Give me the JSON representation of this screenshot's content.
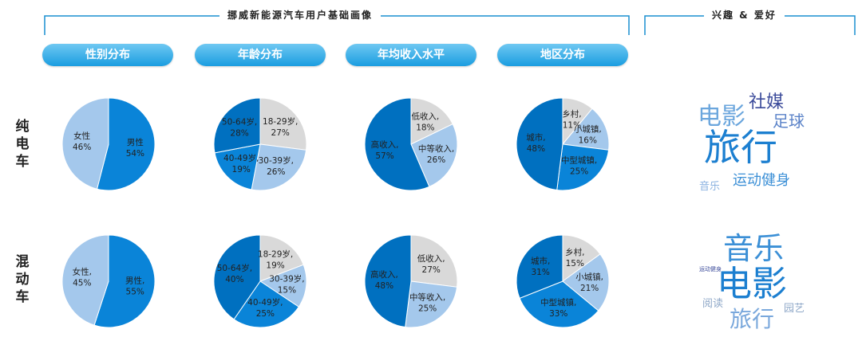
{
  "header": {
    "profile_title": "挪威新能源汽车用户基础画像",
    "interest_title": "兴趣 & 爱好"
  },
  "categories": [
    "性别分布",
    "年龄分布",
    "年均收入水平",
    "地区分布"
  ],
  "rows": [
    {
      "label": [
        "纯",
        "电",
        "车"
      ]
    },
    {
      "label": [
        "混",
        "动",
        "车"
      ]
    }
  ],
  "colors": {
    "dark_blue": "#0070c0",
    "medium_blue": "#0a84d8",
    "light_blue": "#a4c8ec",
    "gray": "#d9d9d9",
    "pill_accent": "#1a9de0"
  },
  "chart_data": [
    {
      "type": "pie",
      "row": "纯电车",
      "category": "性别分布",
      "slices": [
        {
          "name": "男性",
          "value_label": "54%",
          "value": 54,
          "color": "#0a84d8"
        },
        {
          "name": "女性",
          "value_label": "46%",
          "value": 46,
          "color": "#a4c8ec"
        }
      ]
    },
    {
      "type": "pie",
      "row": "纯电车",
      "category": "年龄分布",
      "slices": [
        {
          "name": "18-29岁,",
          "value_label": "27%",
          "value": 27,
          "color": "#d9d9d9"
        },
        {
          "name": "30-39岁,",
          "value_label": "26%",
          "value": 26,
          "color": "#a4c8ec"
        },
        {
          "name": "40-49岁,",
          "value_label": "19%",
          "value": 19,
          "color": "#0a84d8"
        },
        {
          "name": "50-64岁,",
          "value_label": "28%",
          "value": 28,
          "color": "#0070c0"
        }
      ]
    },
    {
      "type": "pie",
      "row": "纯电车",
      "category": "年均收入水平",
      "slices": [
        {
          "name": "低收入,",
          "value_label": "18%",
          "value": 18,
          "color": "#d9d9d9"
        },
        {
          "name": "中等收入,",
          "value_label": "26%",
          "value": 26,
          "color": "#a4c8ec"
        },
        {
          "name": "高收入,",
          "value_label": "57%",
          "value": 57,
          "color": "#0070c0"
        }
      ]
    },
    {
      "type": "pie",
      "row": "纯电车",
      "category": "地区分布",
      "slices": [
        {
          "name": "乡村,",
          "value_label": "11%",
          "value": 11,
          "color": "#d9d9d9"
        },
        {
          "name": "小城镇,",
          "value_label": "16%",
          "value": 16,
          "color": "#a4c8ec"
        },
        {
          "name": "中型城镇,",
          "value_label": "25%",
          "value": 25,
          "color": "#0a84d8"
        },
        {
          "name": "城市,",
          "value_label": "48%",
          "value": 48,
          "color": "#0070c0"
        }
      ]
    },
    {
      "type": "pie",
      "row": "混动车",
      "category": "性别分布",
      "slices": [
        {
          "name": "男性,",
          "value_label": "55%",
          "value": 55,
          "color": "#0a84d8"
        },
        {
          "name": "女性,",
          "value_label": "45%",
          "value": 45,
          "color": "#a4c8ec"
        }
      ]
    },
    {
      "type": "pie",
      "row": "混动车",
      "category": "年龄分布",
      "slices": [
        {
          "name": "18-29岁,",
          "value_label": "19%",
          "value": 19,
          "color": "#d9d9d9"
        },
        {
          "name": "30-39岁,",
          "value_label": "15%",
          "value": 15,
          "color": "#a4c8ec"
        },
        {
          "name": "40-49岁,",
          "value_label": "25%",
          "value": 25,
          "color": "#0a84d8"
        },
        {
          "name": "50-64岁,",
          "value_label": "40%",
          "value": 40,
          "color": "#0070c0"
        }
      ]
    },
    {
      "type": "pie",
      "row": "混动车",
      "category": "年均收入水平",
      "slices": [
        {
          "name": "低收入,",
          "value_label": "27%",
          "value": 27,
          "color": "#d9d9d9"
        },
        {
          "name": "中等收入,",
          "value_label": "25%",
          "value": 25,
          "color": "#a4c8ec"
        },
        {
          "name": "高收入,",
          "value_label": "48%",
          "value": 48,
          "color": "#0070c0"
        }
      ]
    },
    {
      "type": "pie",
      "row": "混动车",
      "category": "地区分布",
      "slices": [
        {
          "name": "乡村,",
          "value_label": "15%",
          "value": 15,
          "color": "#d9d9d9"
        },
        {
          "name": "小城镇,",
          "value_label": "21%",
          "value": 21,
          "color": "#a4c8ec"
        },
        {
          "name": "中型城镇,",
          "value_label": "33%",
          "value": 33,
          "color": "#0a84d8"
        },
        {
          "name": "城市,",
          "value_label": "31%",
          "value": 31,
          "color": "#0070c0"
        }
      ]
    }
  ],
  "word_clouds": [
    {
      "row": "纯电车",
      "words": [
        {
          "text": "旅行",
          "color": "#1c7fd0"
        },
        {
          "text": "电影",
          "color": "#6ba6dd"
        },
        {
          "text": "社媒",
          "color": "#3a4a9a"
        },
        {
          "text": "足球",
          "color": "#5a82c8"
        },
        {
          "text": "运动健身",
          "color": "#3b8fd6"
        },
        {
          "text": "音乐",
          "color": "#8ab2e0"
        }
      ]
    },
    {
      "row": "混动车",
      "words": [
        {
          "text": "电影",
          "color": "#1c7fd0"
        },
        {
          "text": "音乐",
          "color": "#3b8fd6"
        },
        {
          "text": "旅行",
          "color": "#7aa8dc"
        },
        {
          "text": "阅读",
          "color": "#8fa8c8"
        },
        {
          "text": "园艺",
          "color": "#8fa8c8"
        },
        {
          "text": "运动健身",
          "color": "#3a4a9a"
        }
      ]
    }
  ]
}
